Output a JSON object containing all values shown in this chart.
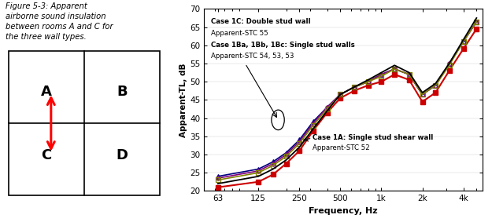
{
  "freqs": [
    63,
    125,
    160,
    200,
    250,
    315,
    400,
    500,
    630,
    800,
    1000,
    1250,
    1600,
    2000,
    2500,
    3150,
    4000,
    5000
  ],
  "case1C": [
    22.0,
    24.0,
    26.0,
    28.5,
    32.0,
    37.0,
    42.0,
    46.5,
    48.5,
    50.5,
    52.5,
    54.5,
    52.5,
    47.0,
    49.5,
    55.0,
    61.5,
    67.5
  ],
  "case1Ba": [
    23.0,
    25.0,
    27.0,
    29.5,
    33.0,
    38.0,
    42.5,
    46.5,
    48.5,
    50.0,
    51.5,
    53.5,
    52.0,
    46.5,
    49.0,
    54.5,
    61.0,
    66.5
  ],
  "case1Bb": [
    23.5,
    25.5,
    27.5,
    30.0,
    33.5,
    38.5,
    43.0,
    46.5,
    48.5,
    50.0,
    52.0,
    53.5,
    52.0,
    46.5,
    49.0,
    55.0,
    61.0,
    66.5
  ],
  "case1Bc": [
    24.0,
    26.0,
    28.0,
    30.5,
    34.0,
    39.0,
    43.0,
    46.5,
    48.5,
    50.0,
    52.0,
    53.5,
    52.0,
    46.5,
    49.0,
    55.0,
    61.0,
    66.5
  ],
  "case1A": [
    21.0,
    22.5,
    24.5,
    27.5,
    31.0,
    36.5,
    41.5,
    45.5,
    47.5,
    49.0,
    50.0,
    52.0,
    50.5,
    44.5,
    47.0,
    53.0,
    59.0,
    64.5
  ],
  "colors": {
    "case1C": "#000000",
    "case1Ba": "#808000",
    "case1Bb": "#800080",
    "case1Bc": "#000080",
    "case1A": "#CC0000"
  },
  "markers": {
    "case1C": "None",
    "case1Ba": "s",
    "case1Bb": "o",
    "case1Bc": "^",
    "case1A": "s"
  },
  "ylabel": "Apparent-TL, dB",
  "xlabel": "Frequency, Hz",
  "ylim": [
    20,
    70
  ],
  "yticks": [
    20,
    25,
    30,
    35,
    40,
    45,
    50,
    55,
    60,
    65,
    70
  ],
  "xtick_labels": [
    "63",
    "125",
    "250",
    "500",
    "1k",
    "2k",
    "4k"
  ],
  "xtick_positions": [
    63,
    125,
    250,
    500,
    1000,
    2000,
    4000
  ]
}
